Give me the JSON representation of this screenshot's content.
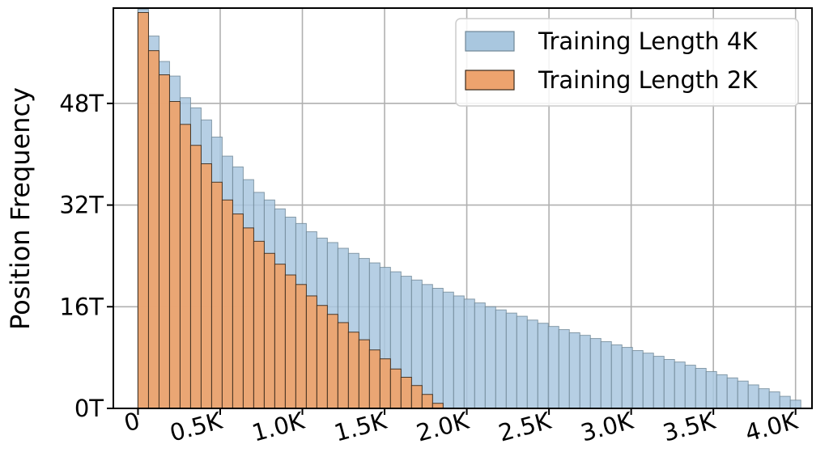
{
  "chart_data": {
    "type": "bar",
    "title": "",
    "xlabel": "",
    "ylabel": "Position Frequency",
    "bin_width": 64,
    "xlim": [
      -150,
      4100
    ],
    "ylim": [
      0,
      63
    ],
    "grid": true,
    "legend_position": "top-right",
    "x_ticks": [
      {
        "value": 0,
        "label": "0"
      },
      {
        "value": 500,
        "label": "0.5K"
      },
      {
        "value": 1000,
        "label": "1.0K"
      },
      {
        "value": 1500,
        "label": "1.5K"
      },
      {
        "value": 2000,
        "label": "2.0K"
      },
      {
        "value": 2500,
        "label": "2.5K"
      },
      {
        "value": 3000,
        "label": "3.0K"
      },
      {
        "value": 3500,
        "label": "3.5K"
      },
      {
        "value": 4000,
        "label": "4.0K"
      }
    ],
    "y_ticks": [
      {
        "value": 0,
        "label": "0T"
      },
      {
        "value": 16,
        "label": "16T"
      },
      {
        "value": 32,
        "label": "32T"
      },
      {
        "value": 48,
        "label": "48T"
      }
    ],
    "series": [
      {
        "name": "Training Length 4K",
        "color": "#a9c7df",
        "bin_start": 0,
        "values": [
          62.8,
          58.6,
          54.6,
          52.3,
          48.9,
          47.3,
          45.4,
          42.7,
          39.7,
          38.0,
          36.0,
          34.0,
          32.8,
          31.4,
          30.1,
          29.1,
          27.8,
          26.8,
          26.1,
          25.2,
          24.4,
          23.6,
          22.9,
          22.2,
          21.5,
          20.8,
          20.2,
          19.5,
          18.9,
          18.3,
          17.7,
          17.2,
          16.6,
          16.0,
          15.5,
          15.0,
          14.5,
          13.9,
          13.4,
          12.9,
          12.4,
          11.9,
          11.5,
          11.0,
          10.5,
          10.0,
          9.6,
          9.1,
          8.7,
          8.2,
          7.7,
          7.3,
          6.8,
          6.3,
          5.8,
          5.3,
          4.8,
          4.3,
          3.7,
          3.1,
          2.6,
          1.9,
          1.3
        ]
      },
      {
        "name": "Training Length 2K",
        "color": "#eda36e",
        "bin_start": 0,
        "values": [
          62.3,
          56.3,
          52.5,
          48.3,
          44.7,
          41.4,
          38.5,
          35.6,
          32.8,
          30.6,
          28.4,
          26.3,
          24.4,
          22.7,
          21.0,
          19.5,
          17.7,
          16.2,
          14.8,
          13.5,
          12.0,
          10.8,
          9.2,
          7.8,
          6.2,
          4.9,
          3.6,
          2.2,
          0.8
        ]
      }
    ]
  }
}
